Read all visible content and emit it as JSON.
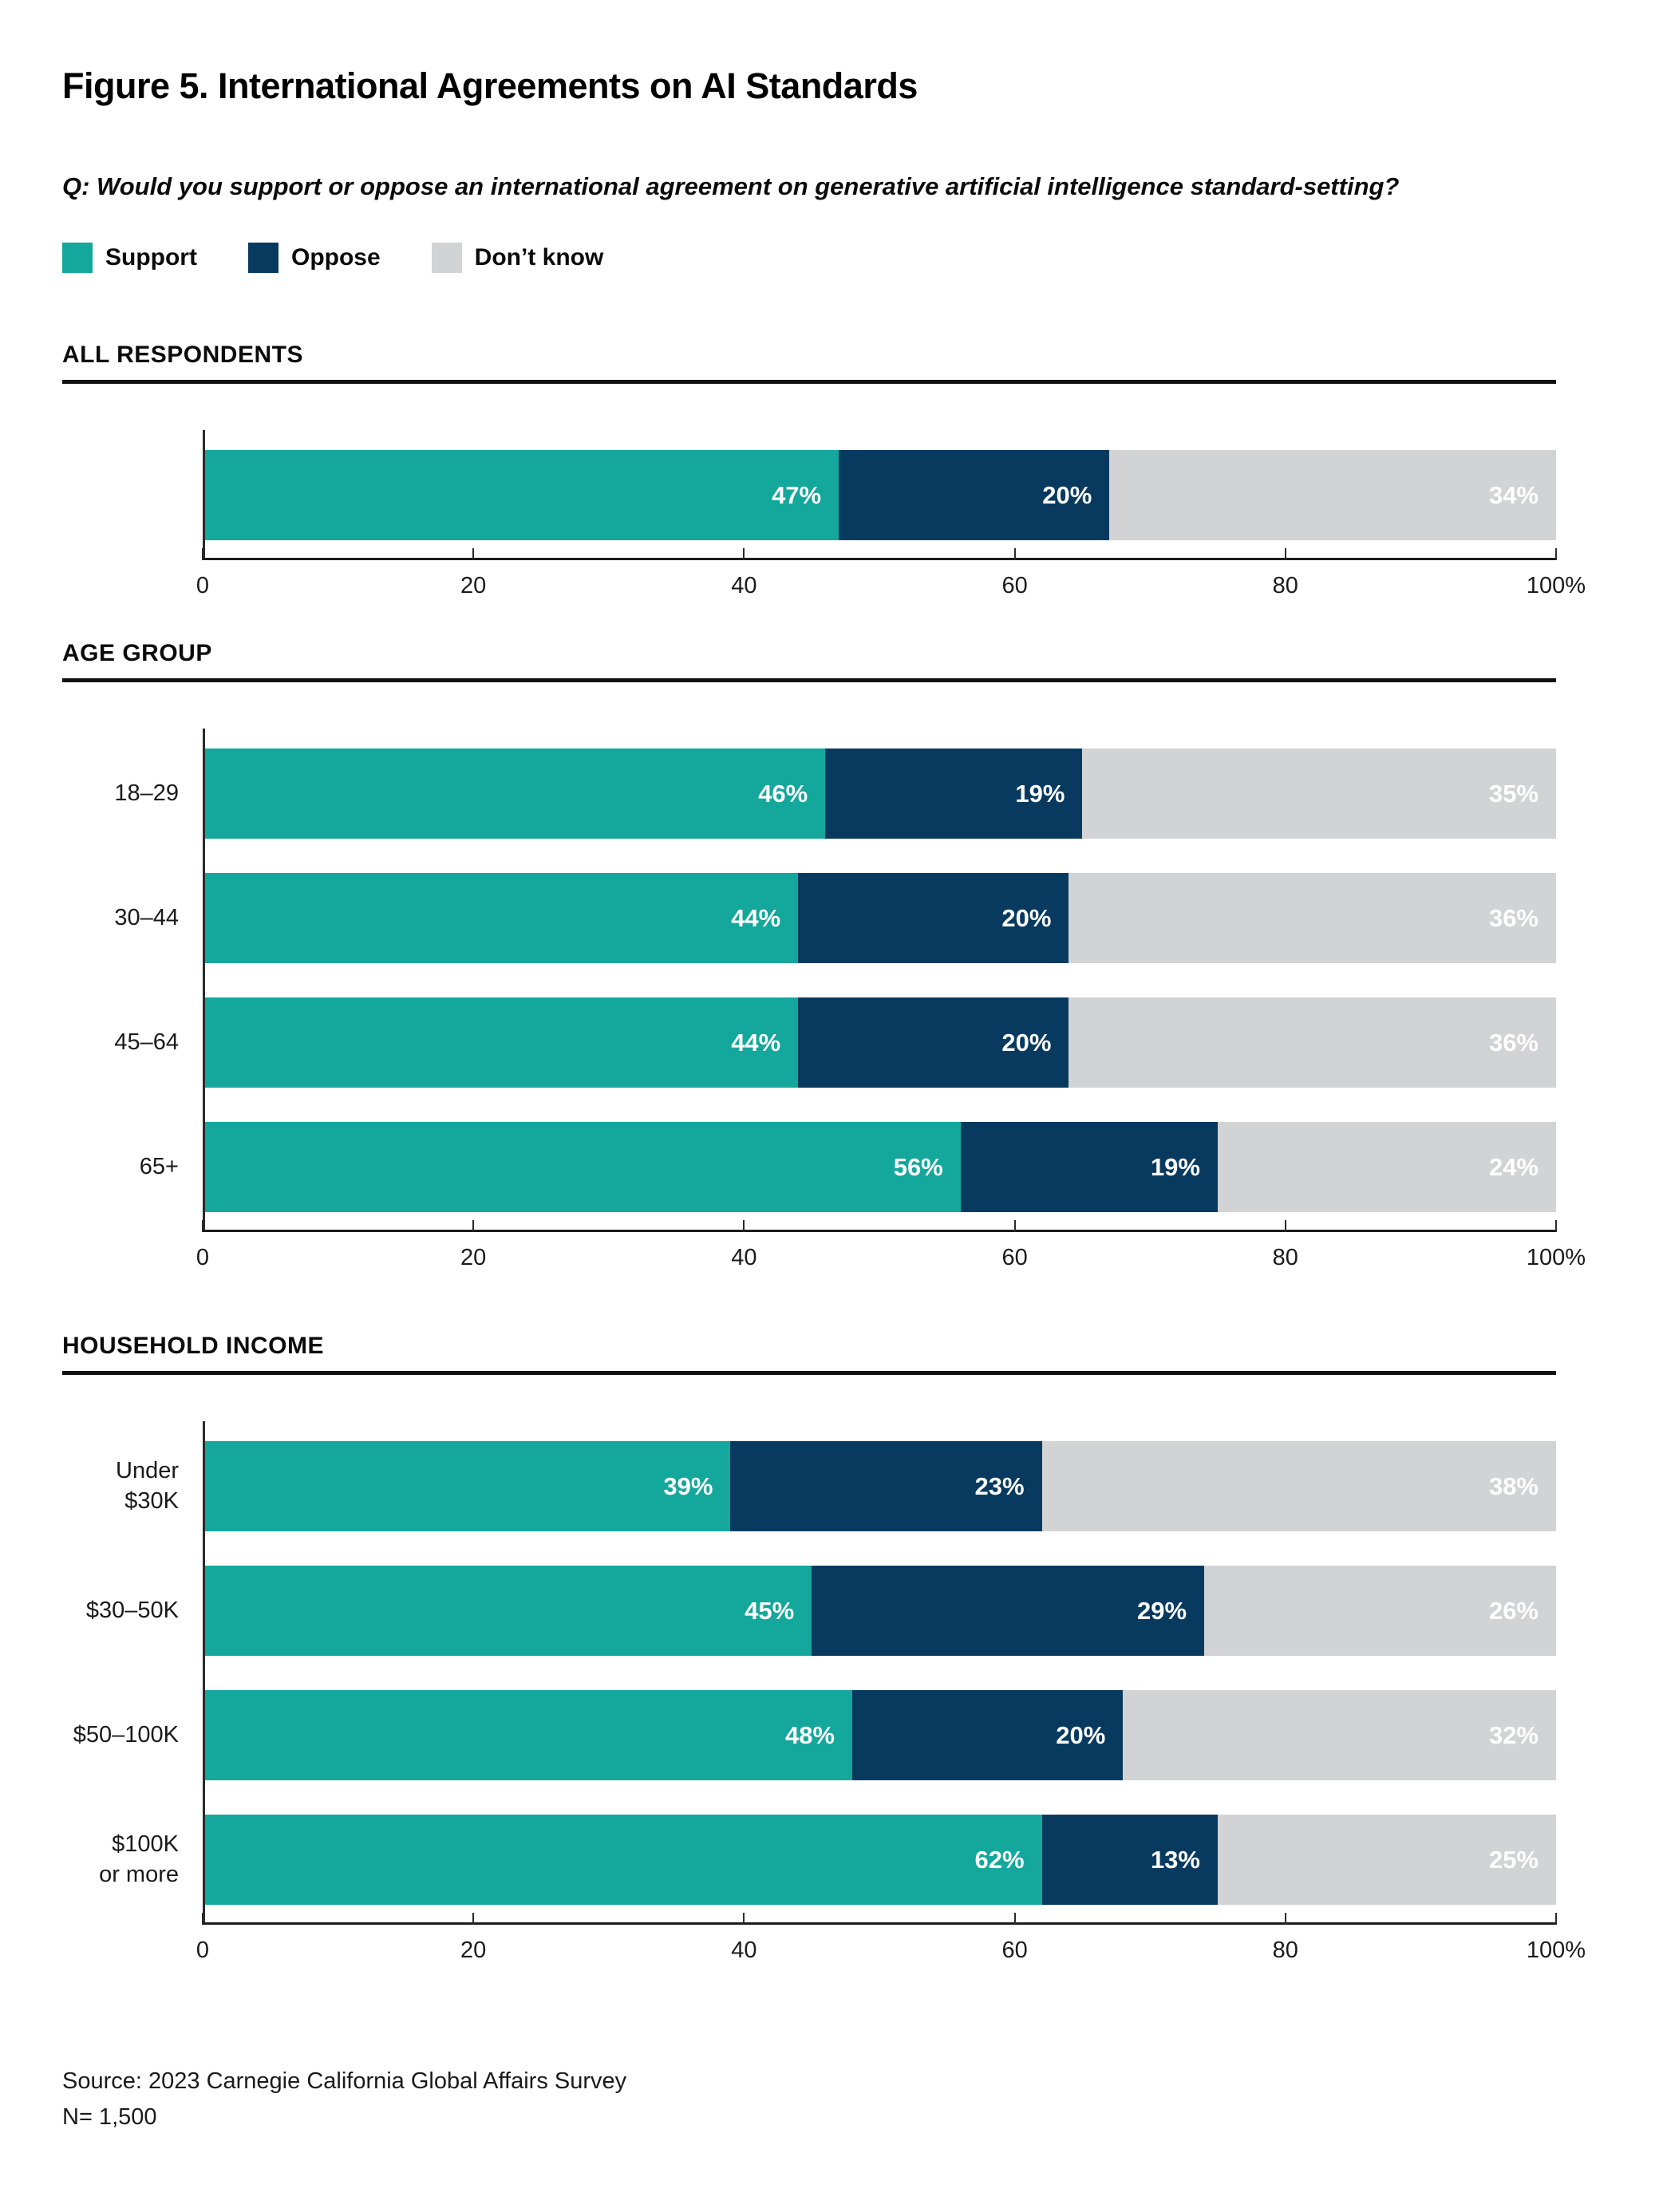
{
  "title": "Figure 5. International Agreements on AI Standards",
  "question": "Q: Would you support or oppose an international agreement on generative artificial intelligence standard-setting?",
  "colors": {
    "support": "#14A79B",
    "oppose": "#083A60",
    "dont_know": "#D2D3D4",
    "axis": "#1c1c1c",
    "bar_label_text": "#ffffff"
  },
  "legend": [
    {
      "label": "Support",
      "color": "#14A79B"
    },
    {
      "label": "Oppose",
      "color": "#083A60"
    },
    {
      "label": "Don’t know",
      "color": "#D2D3D4"
    }
  ],
  "axis": {
    "tick_labels": [
      "0",
      "20",
      "40",
      "60",
      "80",
      "100%"
    ],
    "tick_positions": [
      0,
      20,
      40,
      60,
      80,
      100
    ]
  },
  "sections": [
    {
      "heading": "ALL RESPONDENTS",
      "rows": [
        {
          "label": "",
          "support": 47,
          "oppose": 20,
          "dont_know": 34
        }
      ]
    },
    {
      "heading": "AGE GROUP",
      "rows": [
        {
          "label": "18–29",
          "support": 46,
          "oppose": 19,
          "dont_know": 35
        },
        {
          "label": "30–44",
          "support": 44,
          "oppose": 20,
          "dont_know": 36
        },
        {
          "label": "45–64",
          "support": 44,
          "oppose": 20,
          "dont_know": 36
        },
        {
          "label": "65+",
          "support": 56,
          "oppose": 19,
          "dont_know": 24
        }
      ]
    },
    {
      "heading": "HOUSEHOLD INCOME",
      "rows": [
        {
          "label": "Under $30K",
          "support": 39,
          "oppose": 23,
          "dont_know": 38
        },
        {
          "label": "$30–50K",
          "support": 45,
          "oppose": 29,
          "dont_know": 26
        },
        {
          "label": "$50–100K",
          "support": 48,
          "oppose": 20,
          "dont_know": 32
        },
        {
          "label": "$100K\nor more",
          "support": 62,
          "oppose": 13,
          "dont_know": 25
        }
      ]
    }
  ],
  "source": {
    "line1": "Source: 2023 Carnegie California Global Affairs Survey",
    "line2": "N= 1,500"
  },
  "chart_data": [
    {
      "type": "bar",
      "orientation": "horizontal",
      "stacked": true,
      "title": "ALL RESPONDENTS",
      "categories": [
        "All respondents"
      ],
      "series": [
        {
          "name": "Support",
          "values": [
            47
          ]
        },
        {
          "name": "Oppose",
          "values": [
            20
          ]
        },
        {
          "name": "Don’t know",
          "values": [
            34
          ]
        }
      ],
      "xlim": [
        0,
        100
      ],
      "xticks": [
        0,
        20,
        40,
        60,
        80,
        100
      ],
      "xtick_labels": [
        "0",
        "20",
        "40",
        "60",
        "80",
        "100%"
      ],
      "legend_position": "top",
      "grid": false
    },
    {
      "type": "bar",
      "orientation": "horizontal",
      "stacked": true,
      "title": "AGE GROUP",
      "categories": [
        "18–29",
        "30–44",
        "45–64",
        "65+"
      ],
      "series": [
        {
          "name": "Support",
          "values": [
            46,
            44,
            44,
            56
          ]
        },
        {
          "name": "Oppose",
          "values": [
            19,
            20,
            20,
            19
          ]
        },
        {
          "name": "Don’t know",
          "values": [
            35,
            36,
            36,
            24
          ]
        }
      ],
      "xlim": [
        0,
        100
      ],
      "xticks": [
        0,
        20,
        40,
        60,
        80,
        100
      ],
      "xtick_labels": [
        "0",
        "20",
        "40",
        "60",
        "80",
        "100%"
      ],
      "legend_position": "top",
      "grid": false
    },
    {
      "type": "bar",
      "orientation": "horizontal",
      "stacked": true,
      "title": "HOUSEHOLD INCOME",
      "categories": [
        "Under $30K",
        "$30–50K",
        "$50–100K",
        "$100K or more"
      ],
      "series": [
        {
          "name": "Support",
          "values": [
            39,
            45,
            48,
            62
          ]
        },
        {
          "name": "Oppose",
          "values": [
            23,
            29,
            20,
            13
          ]
        },
        {
          "name": "Don’t know",
          "values": [
            38,
            26,
            32,
            25
          ]
        }
      ],
      "xlim": [
        0,
        100
      ],
      "xticks": [
        0,
        20,
        40,
        60,
        80,
        100
      ],
      "xtick_labels": [
        "0",
        "20",
        "40",
        "60",
        "80",
        "100%"
      ],
      "legend_position": "top",
      "grid": false
    }
  ]
}
